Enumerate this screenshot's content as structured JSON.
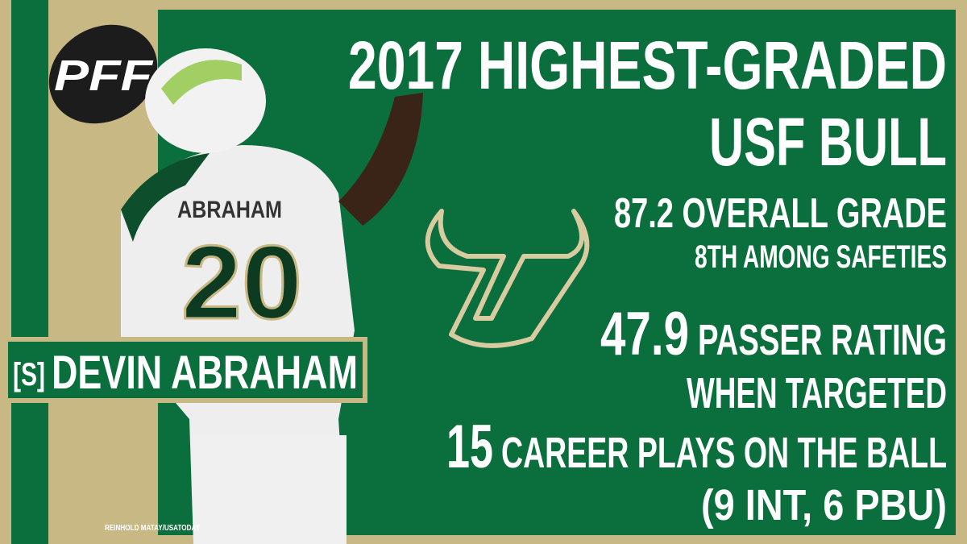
{
  "logo": {
    "text": "PFF"
  },
  "headline": {
    "line1": "2017 HIGHEST-GRADED",
    "line2": "USF BULL"
  },
  "stats": [
    {
      "number": "87.2 OVERALL GRADE",
      "detail": "8TH AMONG SAFETIES"
    },
    {
      "number": "47.9",
      "label": "PASSER RATING",
      "detail": "WHEN TARGETED"
    },
    {
      "number": "15",
      "label": "CAREER PLAYS ON THE BALL",
      "detail": "(9 INT, 6 PBU)"
    }
  ],
  "player": {
    "position": "[S]",
    "name": "DEVIN ABRAHAM",
    "jersey_name": "ABRAHAM",
    "jersey_number": "20"
  },
  "credit": "REINHOLD MATAY/USATODAY"
}
